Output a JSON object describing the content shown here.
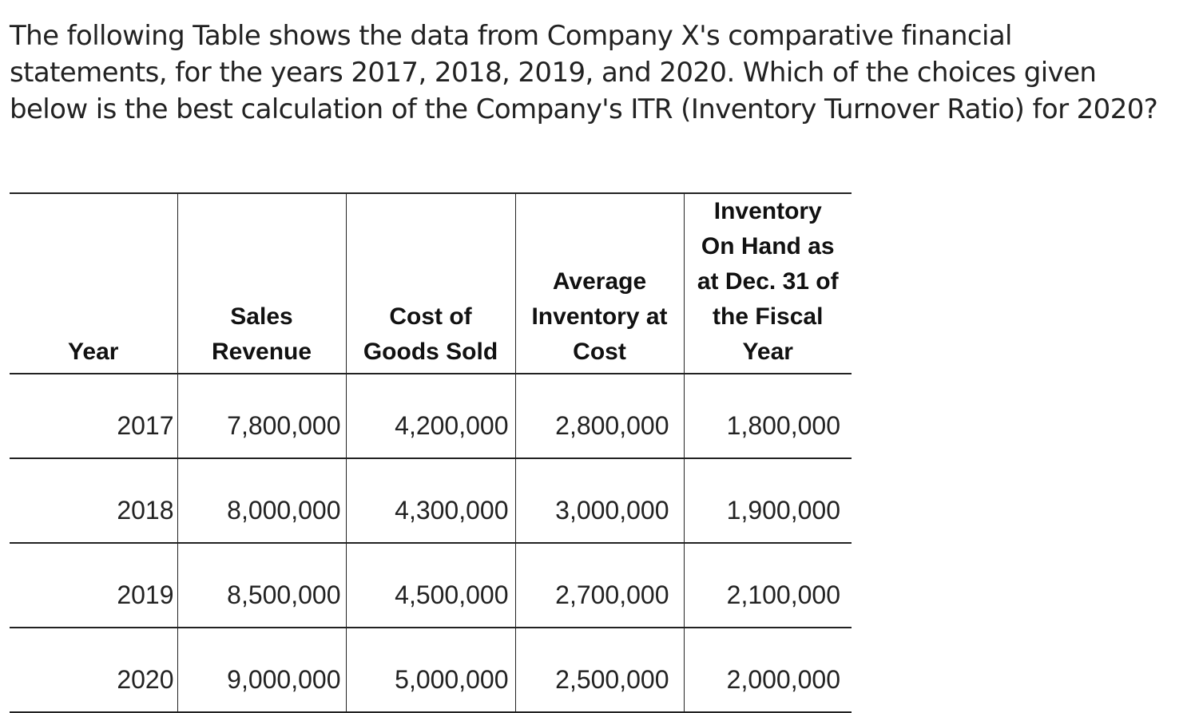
{
  "question": {
    "text": "The following Table shows the data from Company X's comparative financial statements, for the years 2017, 2018, 2019, and 2020. Which of the choices given below is the best calculation of the Company's ITR (Inventory Turnover Ratio) for 2020?"
  },
  "table": {
    "headers": {
      "year": [
        "Year"
      ],
      "sales_revenue": [
        "Sales",
        "Revenue"
      ],
      "cogs": [
        "Cost of",
        "Goods Sold"
      ],
      "avg_inventory": [
        "Average",
        "Inventory at",
        "Cost"
      ],
      "inventory_on_hand": [
        "Inventory",
        "On Hand as",
        "at Dec. 31 of",
        "the Fiscal",
        "Year"
      ]
    },
    "rows": [
      {
        "year": "2017",
        "sales_revenue": "7,800,000",
        "cogs": "4,200,000",
        "avg_inventory": "2,800,000",
        "inventory_on_hand": "1,800,000"
      },
      {
        "year": "2018",
        "sales_revenue": "8,000,000",
        "cogs": "4,300,000",
        "avg_inventory": "3,000,000",
        "inventory_on_hand": "1,900,000"
      },
      {
        "year": "2019",
        "sales_revenue": "8,500,000",
        "cogs": "4,500,000",
        "avg_inventory": "2,700,000",
        "inventory_on_hand": "2,100,000"
      },
      {
        "year": "2020",
        "sales_revenue": "9,000,000",
        "cogs": "5,000,000",
        "avg_inventory": "2,500,000",
        "inventory_on_hand": "2,000,000"
      }
    ]
  }
}
